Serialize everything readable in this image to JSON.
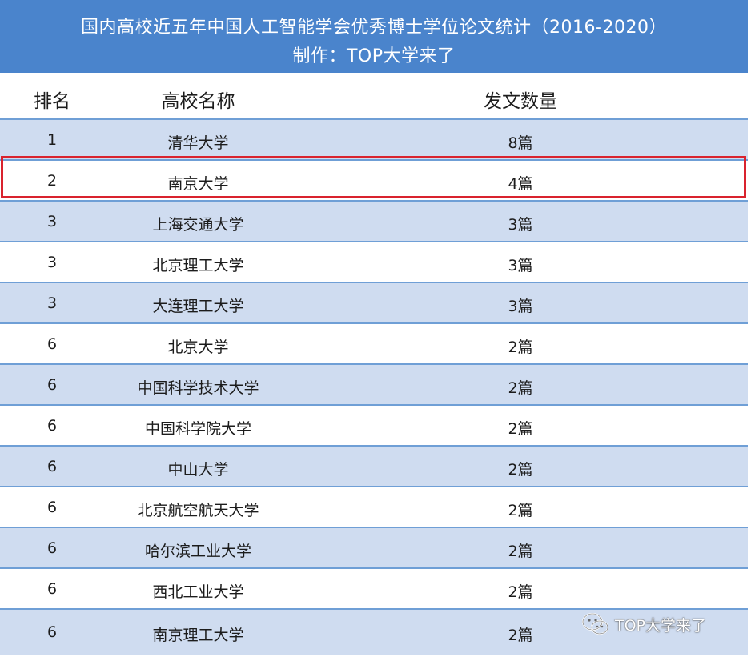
{
  "title": {
    "line1": "国内高校近五年中国人工智能学会优秀博士学位论文统计（2016-2020）",
    "line2": "制作：TOP大学来了"
  },
  "header": {
    "rank": "排名",
    "name": "高校名称",
    "count": "发文数量"
  },
  "rows": [
    {
      "rank": "1",
      "name": "清华大学",
      "count": "8篇"
    },
    {
      "rank": "2",
      "name": "南京大学",
      "count": "4篇"
    },
    {
      "rank": "3",
      "name": "上海交通大学",
      "count": "3篇"
    },
    {
      "rank": "3",
      "name": "北京理工大学",
      "count": "3篇"
    },
    {
      "rank": "3",
      "name": "大连理工大学",
      "count": "3篇"
    },
    {
      "rank": "6",
      "name": "北京大学",
      "count": "2篇"
    },
    {
      "rank": "6",
      "name": "中国科学技术大学",
      "count": "2篇"
    },
    {
      "rank": "6",
      "name": "中国科学院大学",
      "count": "2篇"
    },
    {
      "rank": "6",
      "name": "中山大学",
      "count": "2篇"
    },
    {
      "rank": "6",
      "name": "北京航空航天大学",
      "count": "2篇"
    },
    {
      "rank": "6",
      "name": "哈尔滨工业大学",
      "count": "2篇"
    },
    {
      "rank": "6",
      "name": "西北工业大学",
      "count": "2篇"
    },
    {
      "rank": "6",
      "name": "南京理工大学",
      "count": "2篇"
    }
  ],
  "watermark": {
    "text": "TOP大学来了",
    "icon": "wechat-icon"
  },
  "colors": {
    "title_bg": "#4a84cc",
    "shade_row": "#cfdcf0",
    "row_border": "#6f9fd6",
    "highlight": "#d9232e"
  }
}
